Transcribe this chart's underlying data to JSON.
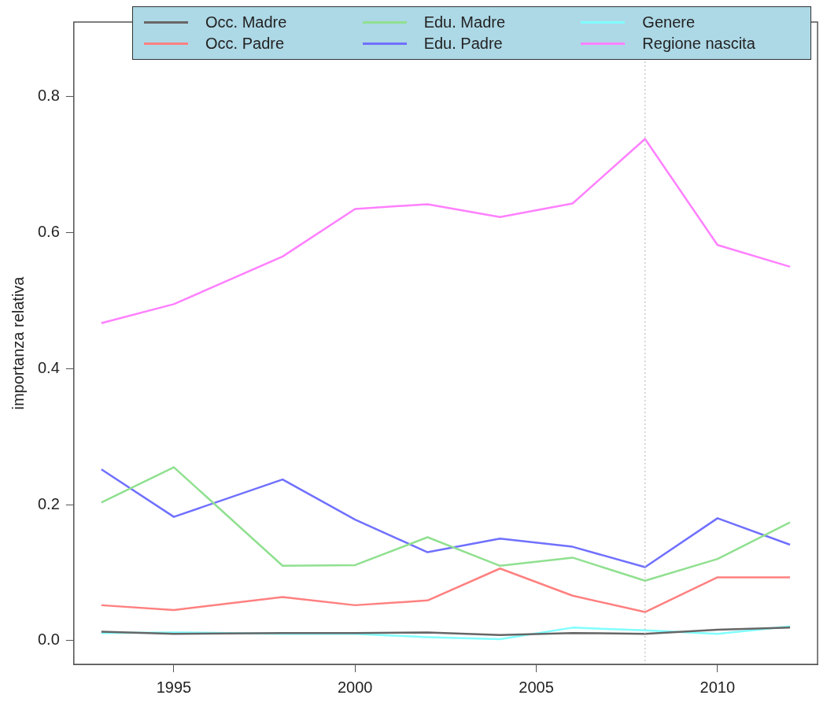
{
  "chart_data": {
    "type": "line",
    "ylabel": "importanza relativa",
    "x": [
      1993,
      1995,
      1998,
      2000,
      2002,
      2004,
      2006,
      2008,
      2010,
      2012
    ],
    "xlim": [
      1992.24,
      2012.76
    ],
    "xticks": [
      1995,
      2000,
      2005,
      2010
    ],
    "ylim": [
      -0.035,
      0.91
    ],
    "yticks": [
      {
        "value": 0,
        "label": "0.0"
      },
      0.2,
      0.4,
      0.6,
      0.8
    ],
    "grid": false,
    "legend": "top",
    "marker": "none",
    "line_style": "solid",
    "ref_lines": [
      {
        "axis": "x",
        "value": 2008,
        "color": "#cccccc",
        "line_style": "dotted"
      }
    ],
    "series": [
      {
        "name": "Occ. Madre",
        "color": "#666666",
        "values": [
          0.013,
          0.01,
          0.011,
          0.011,
          0.012,
          0.008,
          0.011,
          0.01,
          0.016,
          0.019
        ]
      },
      {
        "name": "Occ. Padre",
        "color": "#ff8080",
        "values": [
          0.052,
          0.045,
          0.064,
          0.052,
          0.059,
          0.106,
          0.066,
          0.042,
          0.093,
          0.093
        ]
      },
      {
        "name": "Edu. Madre",
        "color": "#90e090",
        "values": [
          0.203,
          0.255,
          0.11,
          0.111,
          0.152,
          0.11,
          0.122,
          0.088,
          0.12,
          0.174
        ]
      },
      {
        "name": "Edu. Padre",
        "color": "#7070ff",
        "values": [
          0.252,
          0.182,
          0.237,
          0.178,
          0.13,
          0.15,
          0.138,
          0.108,
          0.18,
          0.141
        ]
      },
      {
        "name": "Genere",
        "color": "#80ffff",
        "values": [
          0.011,
          0.012,
          0.01,
          0.01,
          0.005,
          0.002,
          0.019,
          0.015,
          0.01,
          0.021
        ]
      },
      {
        "name": "Regione nascita",
        "color": "#ff80ff",
        "values": [
          0.467,
          0.495,
          0.565,
          0.635,
          0.642,
          0.623,
          0.643,
          0.738,
          0.582,
          0.55
        ]
      }
    ]
  }
}
